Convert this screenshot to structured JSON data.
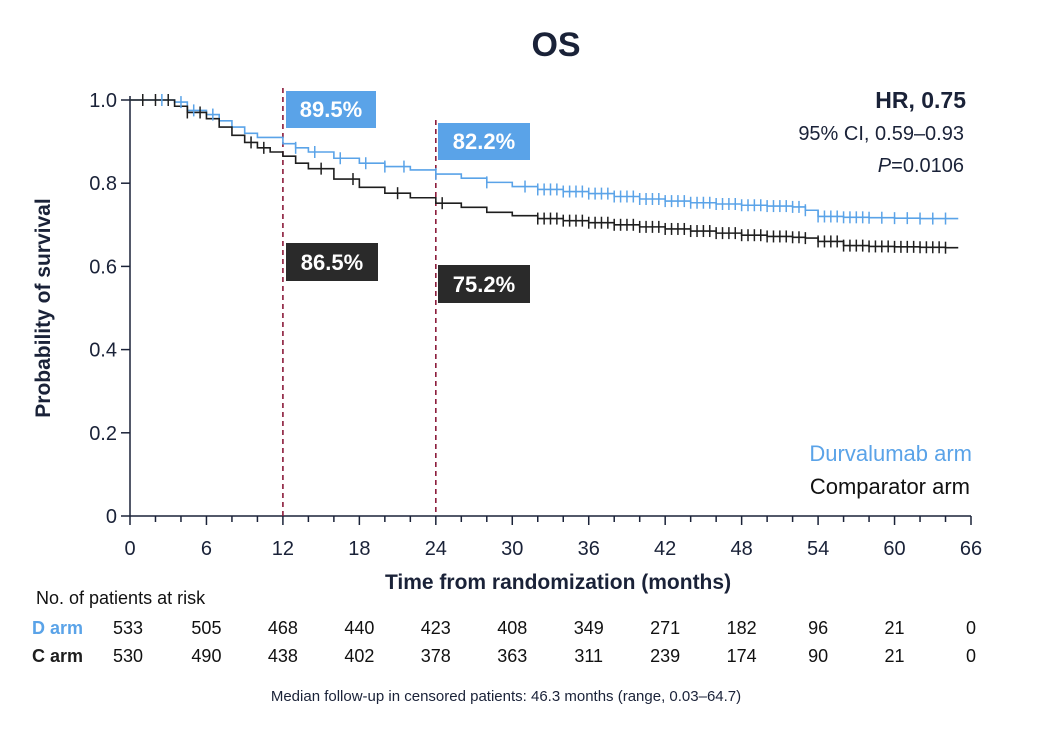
{
  "chart_data": {
    "type": "line",
    "title": "OS",
    "xlabel": "Time from randomization (months)",
    "ylabel": "Probability of survival",
    "xlim": [
      0,
      66
    ],
    "ylim": [
      0,
      1.0
    ],
    "x_ticks": [
      "0",
      "6",
      "12",
      "18",
      "24",
      "30",
      "36",
      "42",
      "48",
      "54",
      "60",
      "66"
    ],
    "y_ticks": [
      "0",
      "0.2",
      "0.4",
      "0.6",
      "0.8",
      "1.0"
    ],
    "grid": false,
    "legend_position": "bottom-right",
    "series": [
      {
        "name": "Durvalumab arm",
        "color": "#5aa3e8",
        "x": [
          0,
          2,
          3.5,
          4.5,
          6,
          7,
          8,
          9,
          10,
          12,
          13,
          14,
          16,
          18,
          20,
          22,
          24,
          26,
          28,
          30,
          32,
          34,
          36,
          38,
          40,
          42,
          44,
          46,
          48,
          50,
          52,
          53,
          54,
          56,
          58,
          60,
          62,
          64,
          65
        ],
        "y": [
          1.0,
          1.0,
          0.995,
          0.975,
          0.965,
          0.95,
          0.935,
          0.92,
          0.91,
          0.895,
          0.885,
          0.875,
          0.86,
          0.848,
          0.84,
          0.832,
          0.822,
          0.812,
          0.802,
          0.792,
          0.785,
          0.78,
          0.775,
          0.768,
          0.762,
          0.757,
          0.753,
          0.75,
          0.747,
          0.745,
          0.743,
          0.735,
          0.72,
          0.718,
          0.717,
          0.716,
          0.715,
          0.715,
          0.715
        ],
        "censor_x": [
          1,
          2.5,
          4,
          5,
          6.5,
          13,
          14.5,
          16.5,
          18.5,
          20,
          21.5,
          24,
          28,
          31,
          32,
          32.5,
          33,
          33.5,
          34,
          34.5,
          35,
          35.5,
          36,
          36.5,
          37,
          37.5,
          38,
          38.5,
          39,
          39.5,
          40,
          40.5,
          41,
          41.5,
          42,
          42.5,
          43,
          43.5,
          44,
          44.5,
          45,
          45.5,
          46,
          46.5,
          47,
          47.5,
          48,
          48.5,
          49,
          49.5,
          50,
          50.5,
          51,
          51.5,
          52,
          52.5,
          53,
          54,
          54.5,
          55,
          55.5,
          56,
          56.5,
          57,
          57.5,
          58,
          59,
          60,
          61,
          62,
          63,
          64
        ]
      },
      {
        "name": "Comparator arm",
        "color": "#1e1e1e",
        "x": [
          0,
          2,
          3.5,
          4.5,
          6,
          7,
          8,
          9,
          10,
          11,
          12,
          13,
          14,
          16,
          18,
          20,
          22,
          24,
          26,
          28,
          30,
          32,
          34,
          36,
          38,
          40,
          42,
          44,
          46,
          48,
          50,
          52,
          53,
          54,
          56,
          58,
          60,
          62,
          64,
          65
        ],
        "y": [
          1.0,
          1.0,
          0.985,
          0.97,
          0.955,
          0.935,
          0.915,
          0.898,
          0.885,
          0.875,
          0.865,
          0.848,
          0.835,
          0.81,
          0.79,
          0.776,
          0.765,
          0.752,
          0.742,
          0.73,
          0.722,
          0.715,
          0.71,
          0.705,
          0.7,
          0.695,
          0.69,
          0.685,
          0.68,
          0.675,
          0.672,
          0.67,
          0.668,
          0.66,
          0.65,
          0.648,
          0.647,
          0.646,
          0.645,
          0.645
        ],
        "censor_x": [
          1,
          2,
          3,
          4.5,
          5.5,
          9.5,
          10.5,
          15,
          17.5,
          21,
          24.5,
          32,
          32.5,
          33,
          33.5,
          34,
          34.5,
          35,
          35.5,
          36,
          36.5,
          37,
          37.5,
          38,
          38.5,
          39,
          39.5,
          40,
          40.5,
          41,
          41.5,
          42,
          42.5,
          43,
          43.5,
          44,
          44.5,
          45,
          45.5,
          46,
          46.5,
          47,
          47.5,
          48,
          48.5,
          49,
          49.5,
          50,
          50.5,
          51,
          51.5,
          52,
          52.5,
          53,
          54,
          54.5,
          55,
          55.5,
          56,
          56.5,
          57,
          57.5,
          58,
          58.5,
          59,
          59.5,
          60,
          60.5,
          61,
          61.5,
          62,
          62.5,
          63,
          63.5,
          64
        ]
      }
    ],
    "reference_lines_x": [
      12,
      24
    ],
    "annotations": [
      {
        "text": "89.5%",
        "x": 12,
        "y": 1.0,
        "series": "Durvalumab arm"
      },
      {
        "text": "82.2%",
        "x": 24,
        "y": 0.91,
        "series": "Durvalumab arm"
      },
      {
        "text": "86.5%",
        "x": 12,
        "y": 0.61,
        "series": "Comparator arm"
      },
      {
        "text": "75.2%",
        "x": 24,
        "y": 0.56,
        "series": "Comparator arm"
      }
    ]
  },
  "stats": {
    "hr": "HR, 0.75",
    "ci": "95% CI, 0.59–0.93",
    "p_italic": "P",
    "p_rest": "=0.0106"
  },
  "legend": {
    "durvalumab": "Durvalumab arm",
    "comparator": "Comparator arm"
  },
  "risk_table": {
    "header": "No. of patients at risk",
    "rows": [
      {
        "label": "D arm",
        "color": "#5aa3e8",
        "values": [
          "533",
          "505",
          "468",
          "440",
          "423",
          "408",
          "349",
          "271",
          "182",
          "96",
          "21",
          "0"
        ]
      },
      {
        "label": "C arm",
        "color": "#1e1e1e",
        "values": [
          "530",
          "490",
          "438",
          "402",
          "378",
          "363",
          "311",
          "239",
          "174",
          "90",
          "21",
          "0"
        ]
      }
    ]
  },
  "footnote": "Median follow-up in censored patients: 46.3 months (range, 0.03–64.7)",
  "colors": {
    "durvalumab": "#5aa3e8",
    "comparator": "#1e1e1e",
    "reference_line": "#8b1a3a",
    "comparator_box": "#2a2a2a",
    "text": "#1a2238"
  }
}
